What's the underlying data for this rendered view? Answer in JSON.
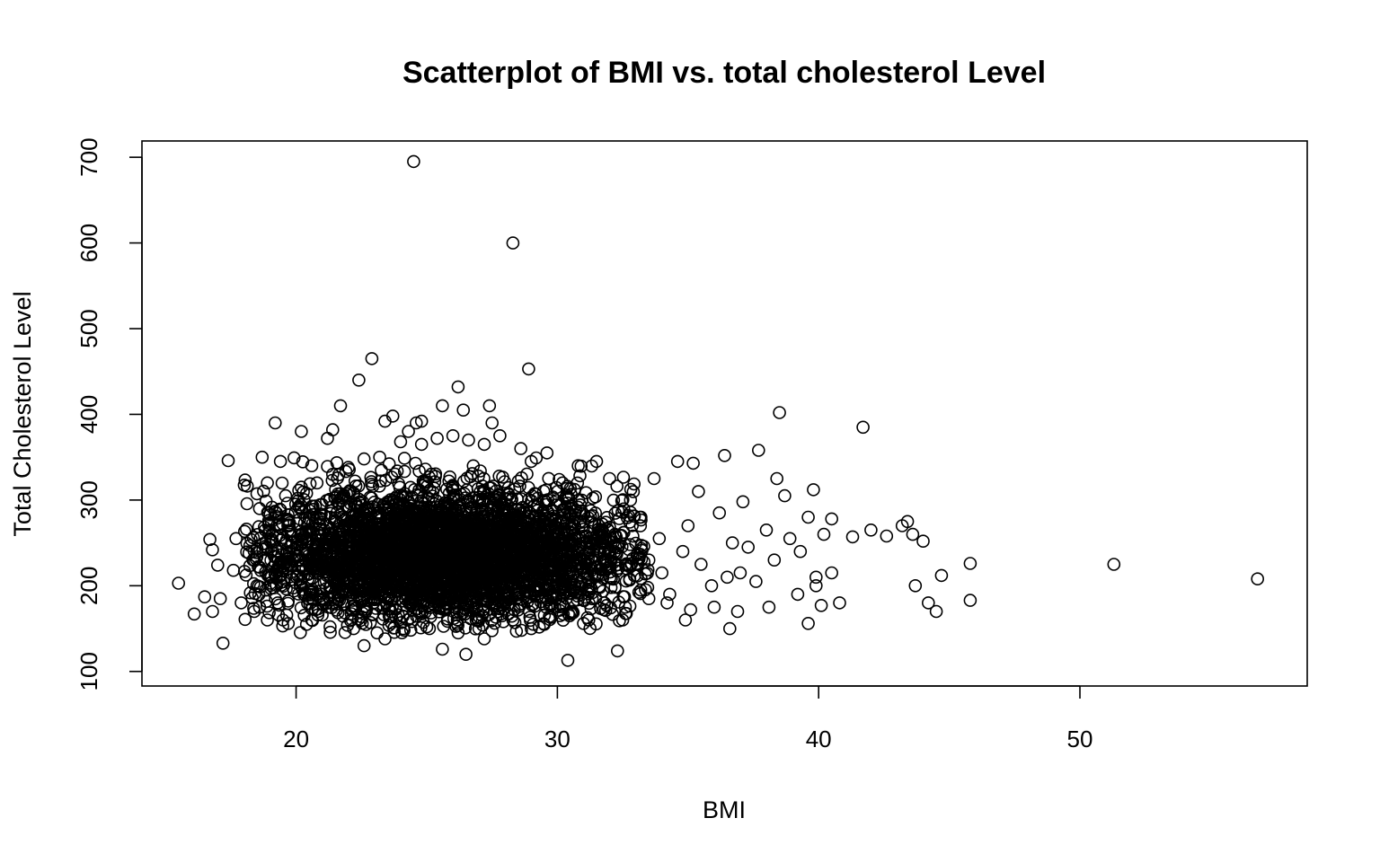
{
  "chart_data": {
    "type": "scatter",
    "title": "Scatterplot of BMI vs. total cholesterol Level",
    "xlabel": "BMI",
    "ylabel": "Total Cholesterol Level",
    "xlim": [
      14.1,
      58.7
    ],
    "ylim": [
      83,
      719
    ],
    "x_ticks": [
      20,
      30,
      40,
      50
    ],
    "y_ticks": [
      100,
      200,
      300,
      400,
      500,
      600,
      700
    ],
    "x_tick_labels": [
      "20",
      "30",
      "40",
      "50"
    ],
    "y_tick_labels": [
      "100",
      "200",
      "300",
      "400",
      "500",
      "600",
      "700"
    ],
    "grid": false,
    "legend": "none",
    "marker": "open-circle",
    "points": [
      [
        15.5,
        203
      ],
      [
        16.1,
        167
      ],
      [
        16.5,
        187
      ],
      [
        16.7,
        254
      ],
      [
        16.8,
        242
      ],
      [
        16.8,
        170
      ],
      [
        17.0,
        224
      ],
      [
        17.1,
        185
      ],
      [
        17.2,
        133
      ],
      [
        17.4,
        346
      ],
      [
        17.6,
        218
      ],
      [
        17.7,
        255
      ],
      [
        17.9,
        180
      ],
      [
        18.1,
        266
      ],
      [
        18.2,
        238
      ],
      [
        18.4,
        170
      ],
      [
        18.5,
        200
      ],
      [
        18.8,
        230
      ],
      [
        19.0,
        210
      ],
      [
        18.6,
        290
      ],
      [
        18.7,
        350
      ],
      [
        18.9,
        160
      ],
      [
        19.1,
        250
      ],
      [
        19.3,
        180
      ],
      [
        18.9,
        320
      ],
      [
        19.2,
        390
      ],
      [
        19.4,
        345
      ],
      [
        20.2,
        380
      ],
      [
        20.6,
        340
      ],
      [
        21.2,
        372
      ],
      [
        21.4,
        382
      ],
      [
        21.7,
        410
      ],
      [
        22.4,
        440
      ],
      [
        22.9,
        465
      ],
      [
        23.4,
        392
      ],
      [
        23.7,
        398
      ],
      [
        24.3,
        380
      ],
      [
        24.5,
        695
      ],
      [
        24.6,
        390
      ],
      [
        24.8,
        392
      ],
      [
        25.6,
        410
      ],
      [
        26.2,
        432
      ],
      [
        26.4,
        405
      ],
      [
        27.4,
        410
      ],
      [
        27.5,
        390
      ],
      [
        28.3,
        600
      ],
      [
        28.9,
        453
      ],
      [
        22.6,
        130
      ],
      [
        23.4,
        138
      ],
      [
        25.6,
        126
      ],
      [
        26.5,
        120
      ],
      [
        27.2,
        138
      ],
      [
        30.4,
        113
      ],
      [
        32.3,
        124
      ],
      [
        32.5,
        160
      ],
      [
        31.0,
        156
      ],
      [
        29.5,
        155
      ],
      [
        33.7,
        325
      ],
      [
        34.6,
        345
      ],
      [
        35.2,
        343
      ],
      [
        35.4,
        310
      ],
      [
        36.4,
        352
      ],
      [
        37.7,
        358
      ],
      [
        38.5,
        402
      ],
      [
        39.8,
        312
      ],
      [
        41.7,
        385
      ],
      [
        36.6,
        150
      ],
      [
        36.9,
        170
      ],
      [
        39.6,
        156
      ],
      [
        39.2,
        190
      ],
      [
        38.1,
        175
      ],
      [
        39.9,
        200
      ],
      [
        40.1,
        177
      ],
      [
        40.8,
        180
      ],
      [
        40.5,
        215
      ],
      [
        41.3,
        257
      ],
      [
        42.0,
        265
      ],
      [
        42.6,
        258
      ],
      [
        43.2,
        270
      ],
      [
        43.4,
        275
      ],
      [
        43.6,
        260
      ],
      [
        44.0,
        252
      ],
      [
        43.7,
        200
      ],
      [
        44.2,
        180
      ],
      [
        44.5,
        170
      ],
      [
        44.7,
        212
      ],
      [
        45.8,
        226
      ],
      [
        45.8,
        183
      ],
      [
        51.3,
        225
      ],
      [
        56.8,
        208
      ],
      [
        33.5,
        230
      ],
      [
        34.0,
        215
      ],
      [
        34.3,
        190
      ],
      [
        34.8,
        240
      ],
      [
        35.0,
        270
      ],
      [
        35.5,
        225
      ],
      [
        35.9,
        200
      ],
      [
        36.2,
        285
      ],
      [
        36.7,
        250
      ],
      [
        37.0,
        215
      ],
      [
        37.3,
        245
      ],
      [
        37.6,
        205
      ],
      [
        38.0,
        265
      ],
      [
        38.3,
        230
      ],
      [
        38.7,
        305
      ],
      [
        38.9,
        255
      ],
      [
        39.3,
        240
      ],
      [
        39.6,
        280
      ],
      [
        39.9,
        210
      ],
      [
        40.2,
        260
      ],
      [
        40.5,
        278
      ],
      [
        38.4,
        325
      ],
      [
        37.1,
        298
      ],
      [
        36.0,
        175
      ],
      [
        35.1,
        172
      ],
      [
        34.9,
        160
      ],
      [
        33.9,
        255
      ],
      [
        33.2,
        280
      ],
      [
        32.8,
        300
      ],
      [
        32.0,
        325
      ],
      [
        31.5,
        345
      ],
      [
        30.8,
        340
      ],
      [
        30.2,
        320
      ],
      [
        29.6,
        355
      ],
      [
        29.0,
        345
      ],
      [
        28.6,
        360
      ],
      [
        27.8,
        375
      ],
      [
        27.2,
        365
      ],
      [
        26.6,
        370
      ],
      [
        26.0,
        375
      ],
      [
        25.4,
        372
      ],
      [
        24.8,
        365
      ],
      [
        24.0,
        368
      ],
      [
        23.2,
        350
      ],
      [
        22.6,
        348
      ],
      [
        22.0,
        338
      ],
      [
        21.4,
        330
      ],
      [
        20.8,
        320
      ],
      [
        20.2,
        315
      ],
      [
        19.6,
        305
      ],
      [
        31.2,
        160
      ],
      [
        30.1,
        165
      ],
      [
        29.0,
        150
      ],
      [
        28.3,
        160
      ],
      [
        27.0,
        150
      ],
      [
        26.2,
        145
      ],
      [
        25.0,
        152
      ],
      [
        24.1,
        150
      ],
      [
        23.1,
        145
      ],
      [
        22.2,
        150
      ],
      [
        21.3,
        152
      ],
      [
        20.4,
        155
      ],
      [
        19.5,
        160
      ],
      [
        18.6,
        175
      ],
      [
        32.6,
        175
      ],
      [
        33.5,
        185
      ],
      [
        34.2,
        180
      ],
      [
        31.8,
        180
      ],
      [
        36.5,
        210
      ]
    ],
    "cluster": {
      "x_mean": 25.6,
      "x_sd": 3.6,
      "y_mean": 236,
      "y_sd": 38,
      "x_range": [
        18.0,
        33.5
      ],
      "y_range": [
        145,
        355
      ],
      "count": 4000
    }
  }
}
